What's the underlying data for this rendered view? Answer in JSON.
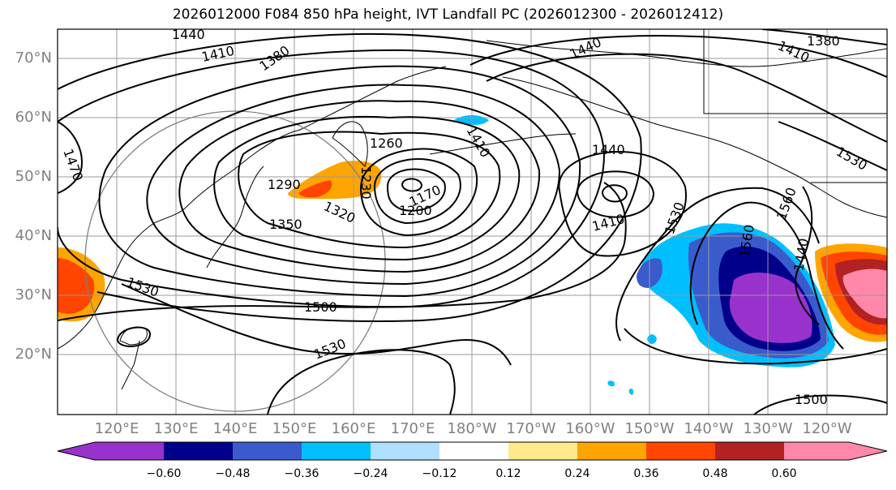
{
  "title": "2026012000 F084 850 hPa height, IVT Landfall PC (2026012300 - 2026012412)",
  "lat_labels": [
    "70°N",
    "60°N",
    "50°N",
    "40°N",
    "30°N",
    "20°N"
  ],
  "lon_labels": [
    "120°E",
    "130°E",
    "140°E",
    "150°E",
    "160°E",
    "170°E",
    "180°W",
    "170°W",
    "160°W",
    "150°W",
    "140°W",
    "130°W",
    "120°W"
  ],
  "contour_labels": [
    "1440",
    "1410",
    "1380",
    "1440",
    "1410",
    "1380",
    "1470",
    "1260",
    "1410",
    "1440",
    "1290",
    "1230",
    "1170",
    "1200",
    "1320",
    "1350",
    "1410",
    "1530",
    "1560",
    "1560",
    "1440",
    "1530",
    "1530",
    "1500",
    "1530",
    "1500"
  ],
  "colorbar": {
    "ticks": [
      "−0.60",
      "−0.48",
      "−0.36",
      "−0.24",
      "−0.12",
      "0.12",
      "0.24",
      "0.36",
      "0.48",
      "0.60"
    ],
    "colors": [
      "#9932cc",
      "#00008b",
      "#3a5bcc",
      "#00bfff",
      "#b0e0ff",
      "#ffffff",
      "#ffe98a",
      "#ffa500",
      "#ff4500",
      "#b22222",
      "#ff88aa"
    ]
  }
}
